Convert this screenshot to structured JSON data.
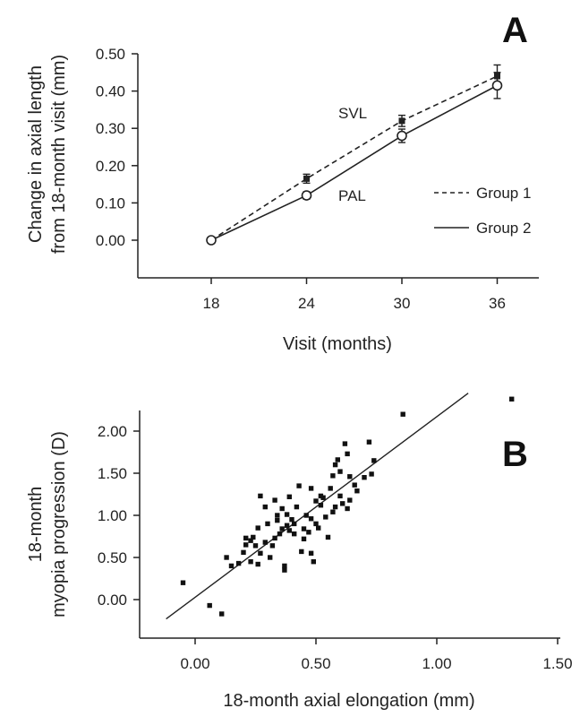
{
  "chart_data": [
    {
      "panel": "A",
      "type": "line",
      "xlabel": "Visit (months)",
      "ylabel_lines": [
        "Change in axial length",
        "from 18-month visit (mm)"
      ],
      "x_ticks": [
        "18",
        "24",
        "30",
        "36"
      ],
      "y_ticks": [
        "0.00",
        "0.10",
        "0.20",
        "0.30",
        "0.40",
        "0.50"
      ],
      "x": [
        18,
        24,
        30,
        36
      ],
      "ylim": [
        -0.1,
        0.5
      ],
      "series": [
        {
          "name": "Group 1",
          "style": "dashed",
          "marker": "filled-square",
          "values": [
            0.0,
            0.165,
            0.32,
            0.44
          ],
          "errors": [
            0.0,
            0.012,
            0.015,
            0.03
          ]
        },
        {
          "name": "Group 2",
          "style": "solid",
          "marker": "open-circle",
          "values": [
            0.0,
            0.12,
            0.28,
            0.415
          ],
          "errors": [
            0.0,
            0.01,
            0.018,
            0.035
          ]
        }
      ],
      "annotations": [
        {
          "text": "SVL",
          "x": 30,
          "y": 0.35
        },
        {
          "text": "PAL",
          "x": 24,
          "y": 0.12
        }
      ],
      "legend_position": "right"
    },
    {
      "panel": "B",
      "type": "scatter",
      "xlabel": "18-month axial elongation (mm)",
      "ylabel_lines": [
        "18-month",
        "myopia progression (D)"
      ],
      "x_ticks": [
        "0.00",
        "0.50",
        "1.00",
        "1.50"
      ],
      "y_ticks": [
        "0.00",
        "0.50",
        "1.00",
        "1.50",
        "2.00"
      ],
      "xlim": [
        -0.2,
        1.5
      ],
      "ylim": [
        -0.4,
        2.25
      ],
      "fit_line": [
        [
          -0.12,
          -0.23
        ],
        [
          1.13,
          2.45
        ]
      ],
      "points": [
        [
          -0.05,
          0.2
        ],
        [
          0.06,
          -0.07
        ],
        [
          0.11,
          -0.17
        ],
        [
          0.13,
          0.5
        ],
        [
          0.15,
          0.4
        ],
        [
          0.18,
          0.43
        ],
        [
          0.2,
          0.56
        ],
        [
          0.21,
          0.65
        ],
        [
          0.21,
          0.73
        ],
        [
          0.23,
          0.45
        ],
        [
          0.23,
          0.7
        ],
        [
          0.24,
          0.74
        ],
        [
          0.25,
          0.64
        ],
        [
          0.26,
          0.42
        ],
        [
          0.26,
          0.85
        ],
        [
          0.27,
          1.23
        ],
        [
          0.27,
          0.55
        ],
        [
          0.29,
          1.1
        ],
        [
          0.29,
          0.68
        ],
        [
          0.3,
          0.9
        ],
        [
          0.31,
          0.5
        ],
        [
          0.32,
          0.64
        ],
        [
          0.33,
          0.73
        ],
        [
          0.33,
          1.18
        ],
        [
          0.34,
          0.94
        ],
        [
          0.34,
          1.0
        ],
        [
          0.35,
          0.78
        ],
        [
          0.36,
          0.84
        ],
        [
          0.36,
          1.08
        ],
        [
          0.37,
          0.35
        ],
        [
          0.37,
          0.4
        ],
        [
          0.38,
          0.88
        ],
        [
          0.38,
          1.01
        ],
        [
          0.39,
          0.82
        ],
        [
          0.39,
          1.22
        ],
        [
          0.4,
          0.95
        ],
        [
          0.41,
          0.9
        ],
        [
          0.41,
          0.78
        ],
        [
          0.42,
          1.1
        ],
        [
          0.43,
          1.35
        ],
        [
          0.44,
          0.57
        ],
        [
          0.45,
          0.84
        ],
        [
          0.45,
          0.72
        ],
        [
          0.46,
          1.0
        ],
        [
          0.47,
          0.8
        ],
        [
          0.48,
          1.32
        ],
        [
          0.48,
          0.96
        ],
        [
          0.48,
          0.55
        ],
        [
          0.49,
          0.45
        ],
        [
          0.5,
          1.17
        ],
        [
          0.5,
          0.9
        ],
        [
          0.51,
          0.85
        ],
        [
          0.52,
          1.12
        ],
        [
          0.52,
          1.23
        ],
        [
          0.53,
          1.21
        ],
        [
          0.54,
          0.98
        ],
        [
          0.55,
          0.74
        ],
        [
          0.56,
          1.32
        ],
        [
          0.57,
          1.04
        ],
        [
          0.57,
          1.47
        ],
        [
          0.58,
          1.6
        ],
        [
          0.58,
          1.1
        ],
        [
          0.59,
          1.66
        ],
        [
          0.6,
          1.23
        ],
        [
          0.6,
          1.52
        ],
        [
          0.61,
          1.14
        ],
        [
          0.62,
          1.85
        ],
        [
          0.63,
          1.73
        ],
        [
          0.63,
          1.08
        ],
        [
          0.64,
          1.46
        ],
        [
          0.64,
          1.18
        ],
        [
          0.66,
          1.36
        ],
        [
          0.67,
          1.29
        ],
        [
          0.7,
          1.45
        ],
        [
          0.72,
          1.87
        ],
        [
          0.73,
          1.49
        ],
        [
          0.74,
          1.65
        ],
        [
          0.86,
          2.2
        ],
        [
          1.31,
          2.38
        ]
      ]
    }
  ]
}
